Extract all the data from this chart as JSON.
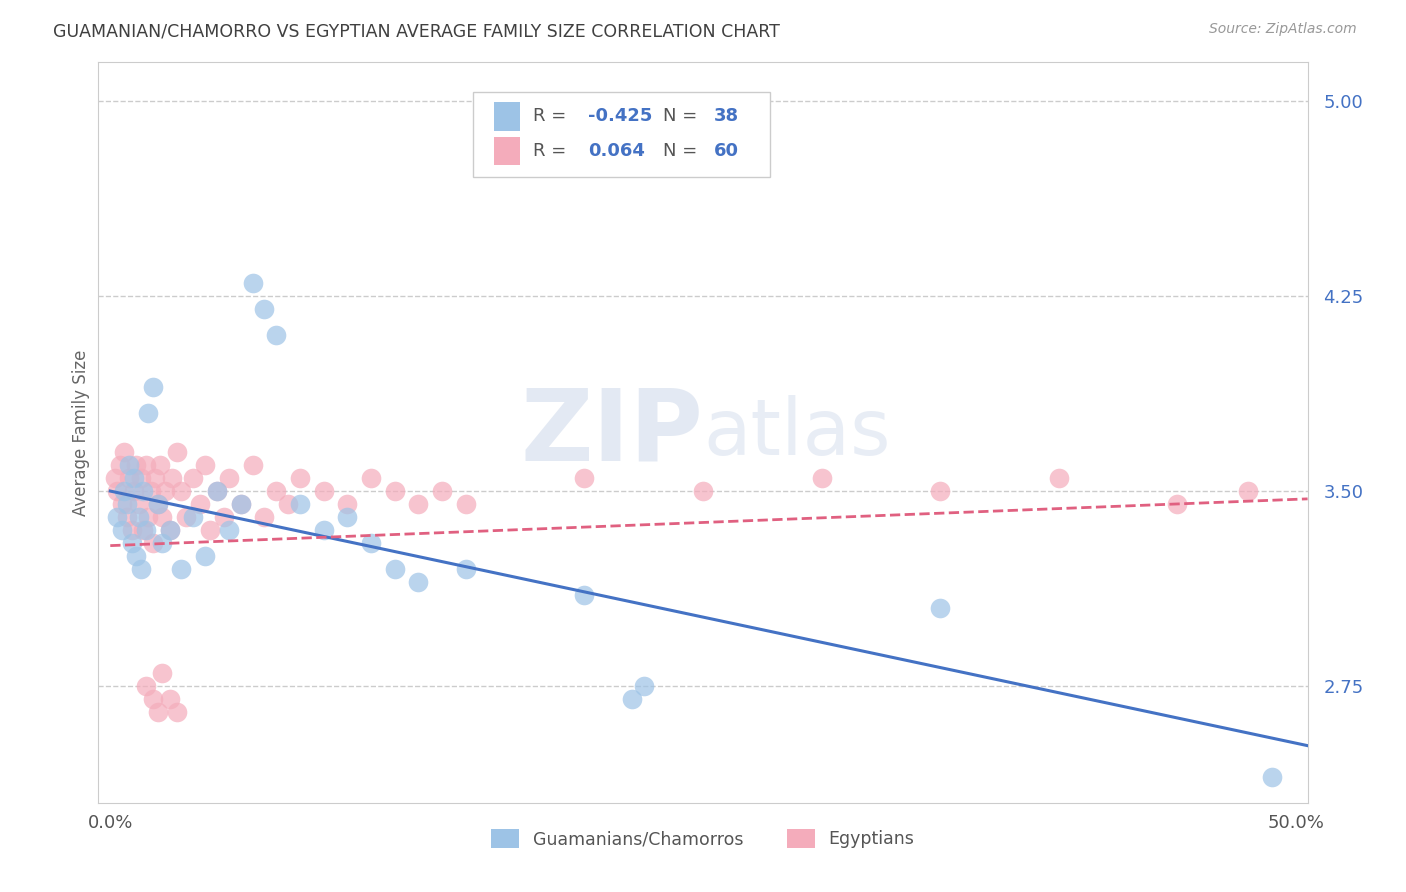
{
  "title": "GUAMANIAN/CHAMORRO VS EGYPTIAN AVERAGE FAMILY SIZE CORRELATION CHART",
  "source": "Source: ZipAtlas.com",
  "ylabel": "Average Family Size",
  "xlim": [
    -0.005,
    0.505
  ],
  "ylim": [
    2.3,
    5.15
  ],
  "xticks": [
    0.0,
    0.1,
    0.2,
    0.3,
    0.4,
    0.5
  ],
  "xticklabels": [
    "0.0%",
    "",
    "",
    "",
    "",
    "50.0%"
  ],
  "yticks_right": [
    2.75,
    3.5,
    4.25,
    5.0
  ],
  "ytick_right_labels": [
    "2.75",
    "3.50",
    "4.25",
    "5.00"
  ],
  "guam_color": "#9DC3E6",
  "egypt_color": "#F4ACBB",
  "guam_line_color": "#4472C4",
  "egypt_line_color": "#E06080",
  "legend_label_guam": "Guamanians/Chamorros",
  "legend_label_egypt": "Egyptians",
  "R_guam": -0.425,
  "N_guam": 38,
  "R_egypt": 0.064,
  "N_egypt": 60,
  "watermark_zip": "ZIP",
  "watermark_atlas": "atlas",
  "background_color": "#ffffff",
  "grid_color": "#cccccc",
  "title_color": "#404040",
  "right_axis_color": "#4472C4",
  "guam_line_y0": 3.5,
  "guam_line_y1": 2.52,
  "egypt_line_y0": 3.29,
  "egypt_line_y1": 3.47,
  "guam_scatter": [
    [
      0.003,
      3.4
    ],
    [
      0.005,
      3.35
    ],
    [
      0.006,
      3.5
    ],
    [
      0.007,
      3.45
    ],
    [
      0.008,
      3.6
    ],
    [
      0.009,
      3.3
    ],
    [
      0.01,
      3.55
    ],
    [
      0.011,
      3.25
    ],
    [
      0.012,
      3.4
    ],
    [
      0.013,
      3.2
    ],
    [
      0.014,
      3.5
    ],
    [
      0.015,
      3.35
    ],
    [
      0.016,
      3.8
    ],
    [
      0.018,
      3.9
    ],
    [
      0.02,
      3.45
    ],
    [
      0.022,
      3.3
    ],
    [
      0.025,
      3.35
    ],
    [
      0.03,
      3.2
    ],
    [
      0.035,
      3.4
    ],
    [
      0.04,
      3.25
    ],
    [
      0.045,
      3.5
    ],
    [
      0.05,
      3.35
    ],
    [
      0.055,
      3.45
    ],
    [
      0.06,
      4.3
    ],
    [
      0.065,
      4.2
    ],
    [
      0.07,
      4.1
    ],
    [
      0.08,
      3.45
    ],
    [
      0.09,
      3.35
    ],
    [
      0.1,
      3.4
    ],
    [
      0.11,
      3.3
    ],
    [
      0.12,
      3.2
    ],
    [
      0.13,
      3.15
    ],
    [
      0.15,
      3.2
    ],
    [
      0.2,
      3.1
    ],
    [
      0.22,
      2.7
    ],
    [
      0.225,
      2.75
    ],
    [
      0.35,
      3.05
    ],
    [
      0.49,
      2.4
    ]
  ],
  "egypt_scatter": [
    [
      0.002,
      3.55
    ],
    [
      0.003,
      3.5
    ],
    [
      0.004,
      3.6
    ],
    [
      0.005,
      3.45
    ],
    [
      0.006,
      3.65
    ],
    [
      0.007,
      3.4
    ],
    [
      0.008,
      3.55
    ],
    [
      0.009,
      3.35
    ],
    [
      0.01,
      3.5
    ],
    [
      0.011,
      3.6
    ],
    [
      0.012,
      3.45
    ],
    [
      0.013,
      3.55
    ],
    [
      0.014,
      3.35
    ],
    [
      0.015,
      3.6
    ],
    [
      0.016,
      3.4
    ],
    [
      0.017,
      3.5
    ],
    [
      0.018,
      3.3
    ],
    [
      0.019,
      3.55
    ],
    [
      0.02,
      3.45
    ],
    [
      0.021,
      3.6
    ],
    [
      0.022,
      3.4
    ],
    [
      0.023,
      3.5
    ],
    [
      0.025,
      3.35
    ],
    [
      0.026,
      3.55
    ],
    [
      0.028,
      3.65
    ],
    [
      0.03,
      3.5
    ],
    [
      0.032,
      3.4
    ],
    [
      0.035,
      3.55
    ],
    [
      0.038,
      3.45
    ],
    [
      0.04,
      3.6
    ],
    [
      0.042,
      3.35
    ],
    [
      0.045,
      3.5
    ],
    [
      0.048,
      3.4
    ],
    [
      0.05,
      3.55
    ],
    [
      0.055,
      3.45
    ],
    [
      0.06,
      3.6
    ],
    [
      0.065,
      3.4
    ],
    [
      0.07,
      3.5
    ],
    [
      0.075,
      3.45
    ],
    [
      0.08,
      3.55
    ],
    [
      0.015,
      2.75
    ],
    [
      0.018,
      2.7
    ],
    [
      0.02,
      2.65
    ],
    [
      0.022,
      2.8
    ],
    [
      0.025,
      2.7
    ],
    [
      0.028,
      2.65
    ],
    [
      0.09,
      3.5
    ],
    [
      0.1,
      3.45
    ],
    [
      0.11,
      3.55
    ],
    [
      0.12,
      3.5
    ],
    [
      0.13,
      3.45
    ],
    [
      0.14,
      3.5
    ],
    [
      0.15,
      3.45
    ],
    [
      0.2,
      3.55
    ],
    [
      0.25,
      3.5
    ],
    [
      0.3,
      3.55
    ],
    [
      0.35,
      3.5
    ],
    [
      0.4,
      3.55
    ],
    [
      0.45,
      3.45
    ],
    [
      0.48,
      3.5
    ]
  ]
}
